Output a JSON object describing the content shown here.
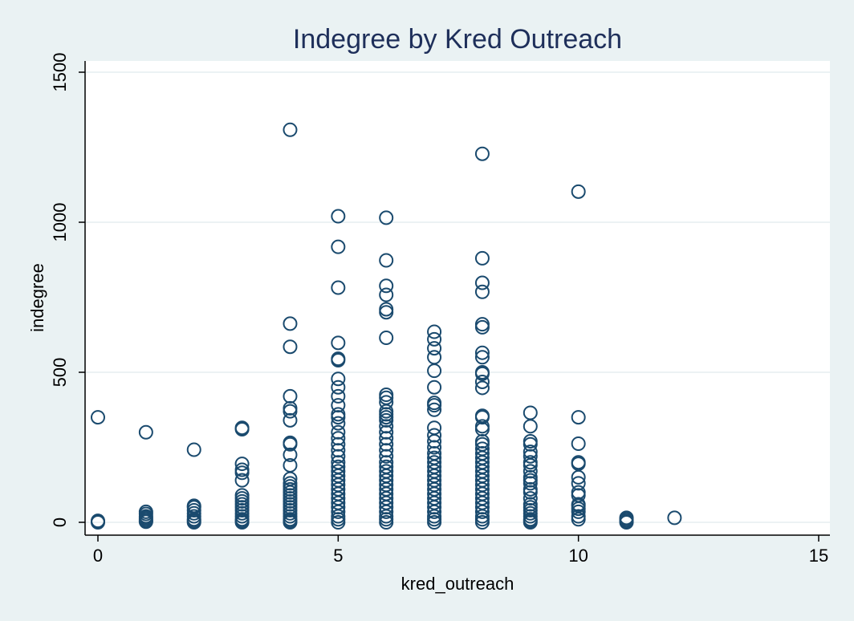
{
  "chart_data": {
    "type": "scatter",
    "title": "Indegree by Kred Outreach",
    "xlabel": "kred_outreach",
    "ylabel": "indegree",
    "xlim": [
      0,
      15
    ],
    "ylim": [
      0,
      1500
    ],
    "xticks": [
      0,
      5,
      10,
      15
    ],
    "yticks": [
      0,
      500,
      1000,
      1500
    ],
    "grid": true,
    "marker": "hollow-circle",
    "colors": {
      "background": "#eaf2f3",
      "plot_area": "#ffffff",
      "marker": "#1a4a6e",
      "title": "#1e2f5a",
      "grid": "#e6eef0"
    },
    "series": [
      {
        "points": [
          [
            0,
            350
          ],
          [
            0,
            5
          ],
          [
            0,
            2
          ],
          [
            0,
            0
          ],
          [
            1,
            300
          ],
          [
            1,
            35
          ],
          [
            1,
            28
          ],
          [
            1,
            20
          ],
          [
            1,
            15
          ],
          [
            1,
            10
          ],
          [
            1,
            5
          ],
          [
            1,
            2
          ],
          [
            2,
            242
          ],
          [
            2,
            55
          ],
          [
            2,
            50
          ],
          [
            2,
            40
          ],
          [
            2,
            30
          ],
          [
            2,
            20
          ],
          [
            2,
            10
          ],
          [
            2,
            5
          ],
          [
            2,
            0
          ],
          [
            3,
            315
          ],
          [
            3,
            310
          ],
          [
            3,
            195
          ],
          [
            3,
            175
          ],
          [
            3,
            165
          ],
          [
            3,
            140
          ],
          [
            3,
            90
          ],
          [
            3,
            80
          ],
          [
            3,
            70
          ],
          [
            3,
            60
          ],
          [
            3,
            50
          ],
          [
            3,
            40
          ],
          [
            3,
            30
          ],
          [
            3,
            20
          ],
          [
            3,
            10
          ],
          [
            3,
            5
          ],
          [
            3,
            0
          ],
          [
            4,
            1308
          ],
          [
            4,
            662
          ],
          [
            4,
            585
          ],
          [
            4,
            420
          ],
          [
            4,
            380
          ],
          [
            4,
            370
          ],
          [
            4,
            340
          ],
          [
            4,
            265
          ],
          [
            4,
            260
          ],
          [
            4,
            225
          ],
          [
            4,
            190
          ],
          [
            4,
            145
          ],
          [
            4,
            130
          ],
          [
            4,
            120
          ],
          [
            4,
            110
          ],
          [
            4,
            100
          ],
          [
            4,
            90
          ],
          [
            4,
            80
          ],
          [
            4,
            70
          ],
          [
            4,
            60
          ],
          [
            4,
            50
          ],
          [
            4,
            40
          ],
          [
            4,
            30
          ],
          [
            4,
            20
          ],
          [
            4,
            10
          ],
          [
            4,
            5
          ],
          [
            4,
            0
          ],
          [
            5,
            1020
          ],
          [
            5,
            918
          ],
          [
            5,
            782
          ],
          [
            5,
            598
          ],
          [
            5,
            545
          ],
          [
            5,
            540
          ],
          [
            5,
            478
          ],
          [
            5,
            450
          ],
          [
            5,
            420
          ],
          [
            5,
            390
          ],
          [
            5,
            360
          ],
          [
            5,
            350
          ],
          [
            5,
            330
          ],
          [
            5,
            300
          ],
          [
            5,
            280
          ],
          [
            5,
            260
          ],
          [
            5,
            240
          ],
          [
            5,
            220
          ],
          [
            5,
            200
          ],
          [
            5,
            185
          ],
          [
            5,
            170
          ],
          [
            5,
            155
          ],
          [
            5,
            140
          ],
          [
            5,
            125
          ],
          [
            5,
            110
          ],
          [
            5,
            95
          ],
          [
            5,
            80
          ],
          [
            5,
            65
          ],
          [
            5,
            50
          ],
          [
            5,
            35
          ],
          [
            5,
            20
          ],
          [
            5,
            10
          ],
          [
            5,
            0
          ],
          [
            6,
            1015
          ],
          [
            6,
            873
          ],
          [
            6,
            788
          ],
          [
            6,
            758
          ],
          [
            6,
            710
          ],
          [
            6,
            700
          ],
          [
            6,
            615
          ],
          [
            6,
            425
          ],
          [
            6,
            415
          ],
          [
            6,
            400
          ],
          [
            6,
            370
          ],
          [
            6,
            360
          ],
          [
            6,
            350
          ],
          [
            6,
            340
          ],
          [
            6,
            320
          ],
          [
            6,
            300
          ],
          [
            6,
            280
          ],
          [
            6,
            260
          ],
          [
            6,
            240
          ],
          [
            6,
            220
          ],
          [
            6,
            200
          ],
          [
            6,
            185
          ],
          [
            6,
            170
          ],
          [
            6,
            155
          ],
          [
            6,
            140
          ],
          [
            6,
            125
          ],
          [
            6,
            110
          ],
          [
            6,
            95
          ],
          [
            6,
            80
          ],
          [
            6,
            65
          ],
          [
            6,
            50
          ],
          [
            6,
            35
          ],
          [
            6,
            20
          ],
          [
            6,
            10
          ],
          [
            6,
            0
          ],
          [
            7,
            635
          ],
          [
            7,
            610
          ],
          [
            7,
            580
          ],
          [
            7,
            550
          ],
          [
            7,
            505
          ],
          [
            7,
            450
          ],
          [
            7,
            398
          ],
          [
            7,
            390
          ],
          [
            7,
            375
          ],
          [
            7,
            315
          ],
          [
            7,
            290
          ],
          [
            7,
            270
          ],
          [
            7,
            250
          ],
          [
            7,
            230
          ],
          [
            7,
            215
          ],
          [
            7,
            200
          ],
          [
            7,
            185
          ],
          [
            7,
            170
          ],
          [
            7,
            155
          ],
          [
            7,
            140
          ],
          [
            7,
            125
          ],
          [
            7,
            110
          ],
          [
            7,
            95
          ],
          [
            7,
            80
          ],
          [
            7,
            65
          ],
          [
            7,
            50
          ],
          [
            7,
            35
          ],
          [
            7,
            20
          ],
          [
            7,
            10
          ],
          [
            7,
            0
          ],
          [
            8,
            1228
          ],
          [
            8,
            880
          ],
          [
            8,
            798
          ],
          [
            8,
            768
          ],
          [
            8,
            660
          ],
          [
            8,
            650
          ],
          [
            8,
            565
          ],
          [
            8,
            550
          ],
          [
            8,
            500
          ],
          [
            8,
            495
          ],
          [
            8,
            468
          ],
          [
            8,
            448
          ],
          [
            8,
            355
          ],
          [
            8,
            350
          ],
          [
            8,
            320
          ],
          [
            8,
            310
          ],
          [
            8,
            270
          ],
          [
            8,
            260
          ],
          [
            8,
            245
          ],
          [
            8,
            230
          ],
          [
            8,
            215
          ],
          [
            8,
            200
          ],
          [
            8,
            185
          ],
          [
            8,
            170
          ],
          [
            8,
            155
          ],
          [
            8,
            140
          ],
          [
            8,
            125
          ],
          [
            8,
            110
          ],
          [
            8,
            95
          ],
          [
            8,
            80
          ],
          [
            8,
            65
          ],
          [
            8,
            50
          ],
          [
            8,
            35
          ],
          [
            8,
            20
          ],
          [
            8,
            10
          ],
          [
            8,
            0
          ],
          [
            9,
            365
          ],
          [
            9,
            320
          ],
          [
            9,
            270
          ],
          [
            9,
            260
          ],
          [
            9,
            235
          ],
          [
            9,
            220
          ],
          [
            9,
            200
          ],
          [
            9,
            190
          ],
          [
            9,
            170
          ],
          [
            9,
            150
          ],
          [
            9,
            140
          ],
          [
            9,
            130
          ],
          [
            9,
            110
          ],
          [
            9,
            100
          ],
          [
            9,
            80
          ],
          [
            9,
            60
          ],
          [
            9,
            50
          ],
          [
            9,
            40
          ],
          [
            9,
            30
          ],
          [
            9,
            20
          ],
          [
            9,
            10
          ],
          [
            9,
            5
          ],
          [
            9,
            0
          ],
          [
            10,
            1102
          ],
          [
            10,
            350
          ],
          [
            10,
            262
          ],
          [
            10,
            200
          ],
          [
            10,
            195
          ],
          [
            10,
            150
          ],
          [
            10,
            130
          ],
          [
            10,
            100
          ],
          [
            10,
            90
          ],
          [
            10,
            60
          ],
          [
            10,
            55
          ],
          [
            10,
            45
          ],
          [
            10,
            35
          ],
          [
            10,
            20
          ],
          [
            10,
            10
          ],
          [
            11,
            15
          ],
          [
            11,
            10
          ],
          [
            11,
            5
          ],
          [
            11,
            0
          ],
          [
            12,
            15
          ]
        ]
      }
    ]
  }
}
